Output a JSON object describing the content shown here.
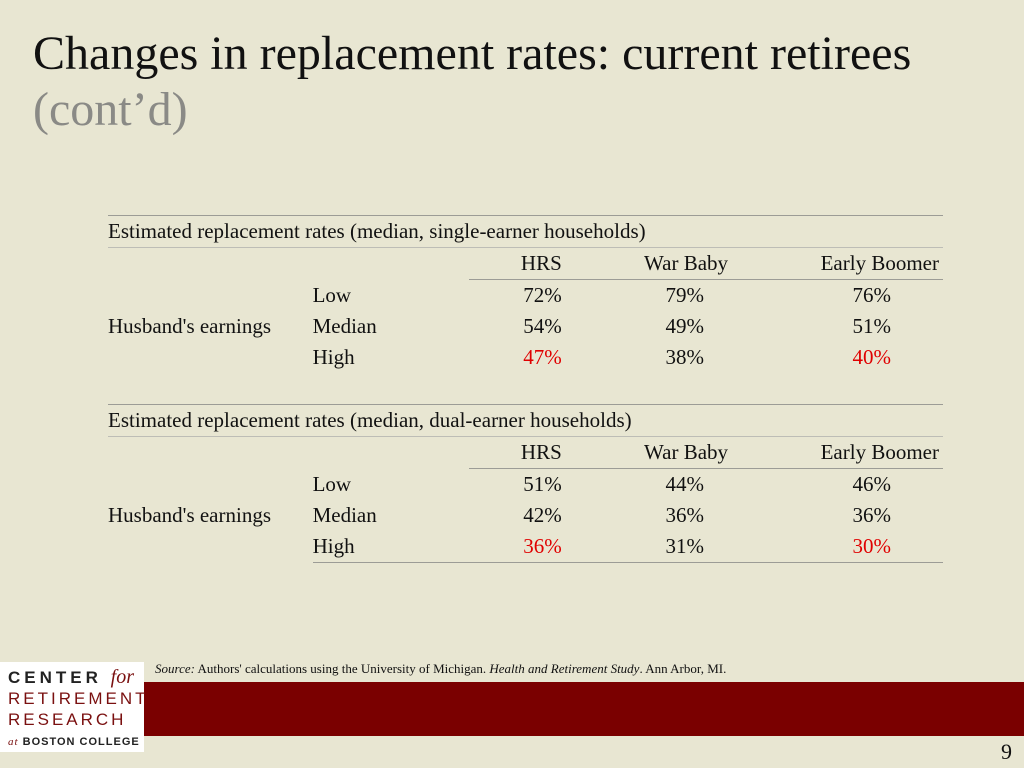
{
  "title": {
    "main": "Changes in replacement rates: current retirees",
    "suffix": "(cont’d)"
  },
  "tables": [
    {
      "caption": "Estimated replacement rates (median, single-earner households)",
      "columns": [
        "HRS",
        "War Baby",
        "Early Boomer"
      ],
      "row_group_label": "Husband's earnings",
      "rows": [
        {
          "label": "Low",
          "values": [
            "72%",
            "79%",
            "76%"
          ]
        },
        {
          "label": "Median",
          "values": [
            "54%",
            "49%",
            "51%"
          ]
        },
        {
          "label": "High",
          "values": [
            "47%",
            "38%",
            "40%"
          ]
        }
      ]
    },
    {
      "caption": "Estimated replacement rates (median, dual-earner households)",
      "columns": [
        "HRS",
        "War Baby",
        "Early Boomer"
      ],
      "row_group_label": "Husband's earnings",
      "rows": [
        {
          "label": "Low",
          "values": [
            "51%",
            "44%",
            "46%"
          ]
        },
        {
          "label": "Median",
          "values": [
            "42%",
            "36%",
            "36%"
          ]
        },
        {
          "label": "High",
          "values": [
            "36%",
            "31%",
            "30%"
          ]
        }
      ]
    }
  ],
  "highlight_color": "#e00000",
  "source": {
    "label": "Source:",
    "text_1": " Authors' calculations using the University of Michigan. ",
    "study": "Health and Retirement Study",
    "text_2": ". Ann Arbor, MI."
  },
  "logo": {
    "line1": "CENTER",
    "line1_for": "for",
    "line2": "RETIREMENT",
    "line3": "RESEARCH",
    "line4_at": "at",
    "line4": "BOSTON COLLEGE"
  },
  "footer_color": "#7a0000",
  "page_number": "9"
}
